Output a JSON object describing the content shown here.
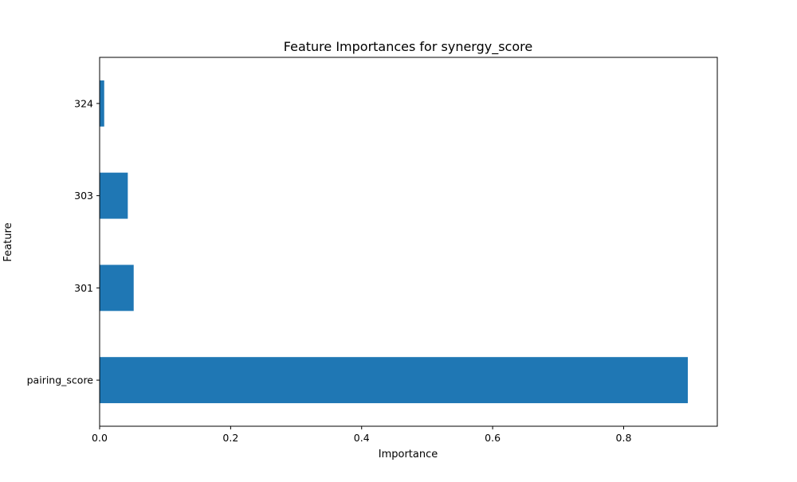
{
  "chart_data": {
    "type": "bar",
    "orientation": "horizontal",
    "title": "Feature Importances for synergy_score",
    "xlabel": "Importance",
    "ylabel": "Feature",
    "categories": [
      "pairing_score",
      "301",
      "303",
      "324"
    ],
    "values": [
      0.898,
      0.052,
      0.043,
      0.007
    ],
    "xlim": [
      0,
      0.943
    ],
    "xticks": [
      0.0,
      0.2,
      0.4,
      0.6,
      0.8
    ],
    "xtick_labels": [
      "0.0",
      "0.2",
      "0.4",
      "0.6",
      "0.8"
    ],
    "bar_color": "#1f77b4",
    "grid": false,
    "legend": "none"
  }
}
